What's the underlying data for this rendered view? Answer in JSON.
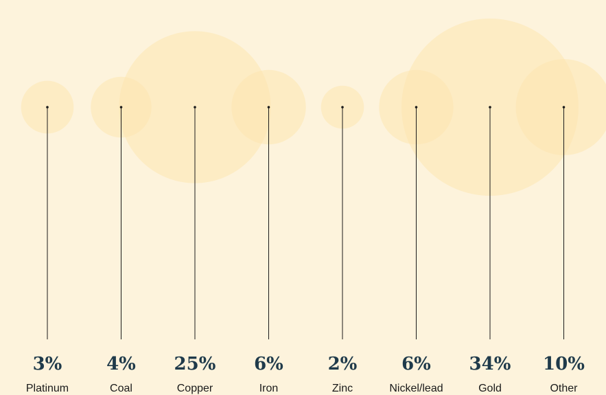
{
  "chart_data": {
    "type": "bubble",
    "title": "",
    "unit": "%",
    "categories": [
      "Platinum",
      "Coal",
      "Copper",
      "Iron",
      "Zinc",
      "Nickel/lead",
      "Gold",
      "Other"
    ],
    "values": [
      3,
      4,
      25,
      6,
      2,
      6,
      34,
      10
    ],
    "value_labels": [
      "3%",
      "4%",
      "25%",
      "6%",
      "2%",
      "6%",
      "34%",
      "10%"
    ],
    "colors": {
      "background": "#fdf3dc",
      "bubble": "#fde6b0",
      "stem": "#1a1a1a",
      "value_text": "#1f3a4a",
      "category_text": "#1a1a1a"
    }
  }
}
